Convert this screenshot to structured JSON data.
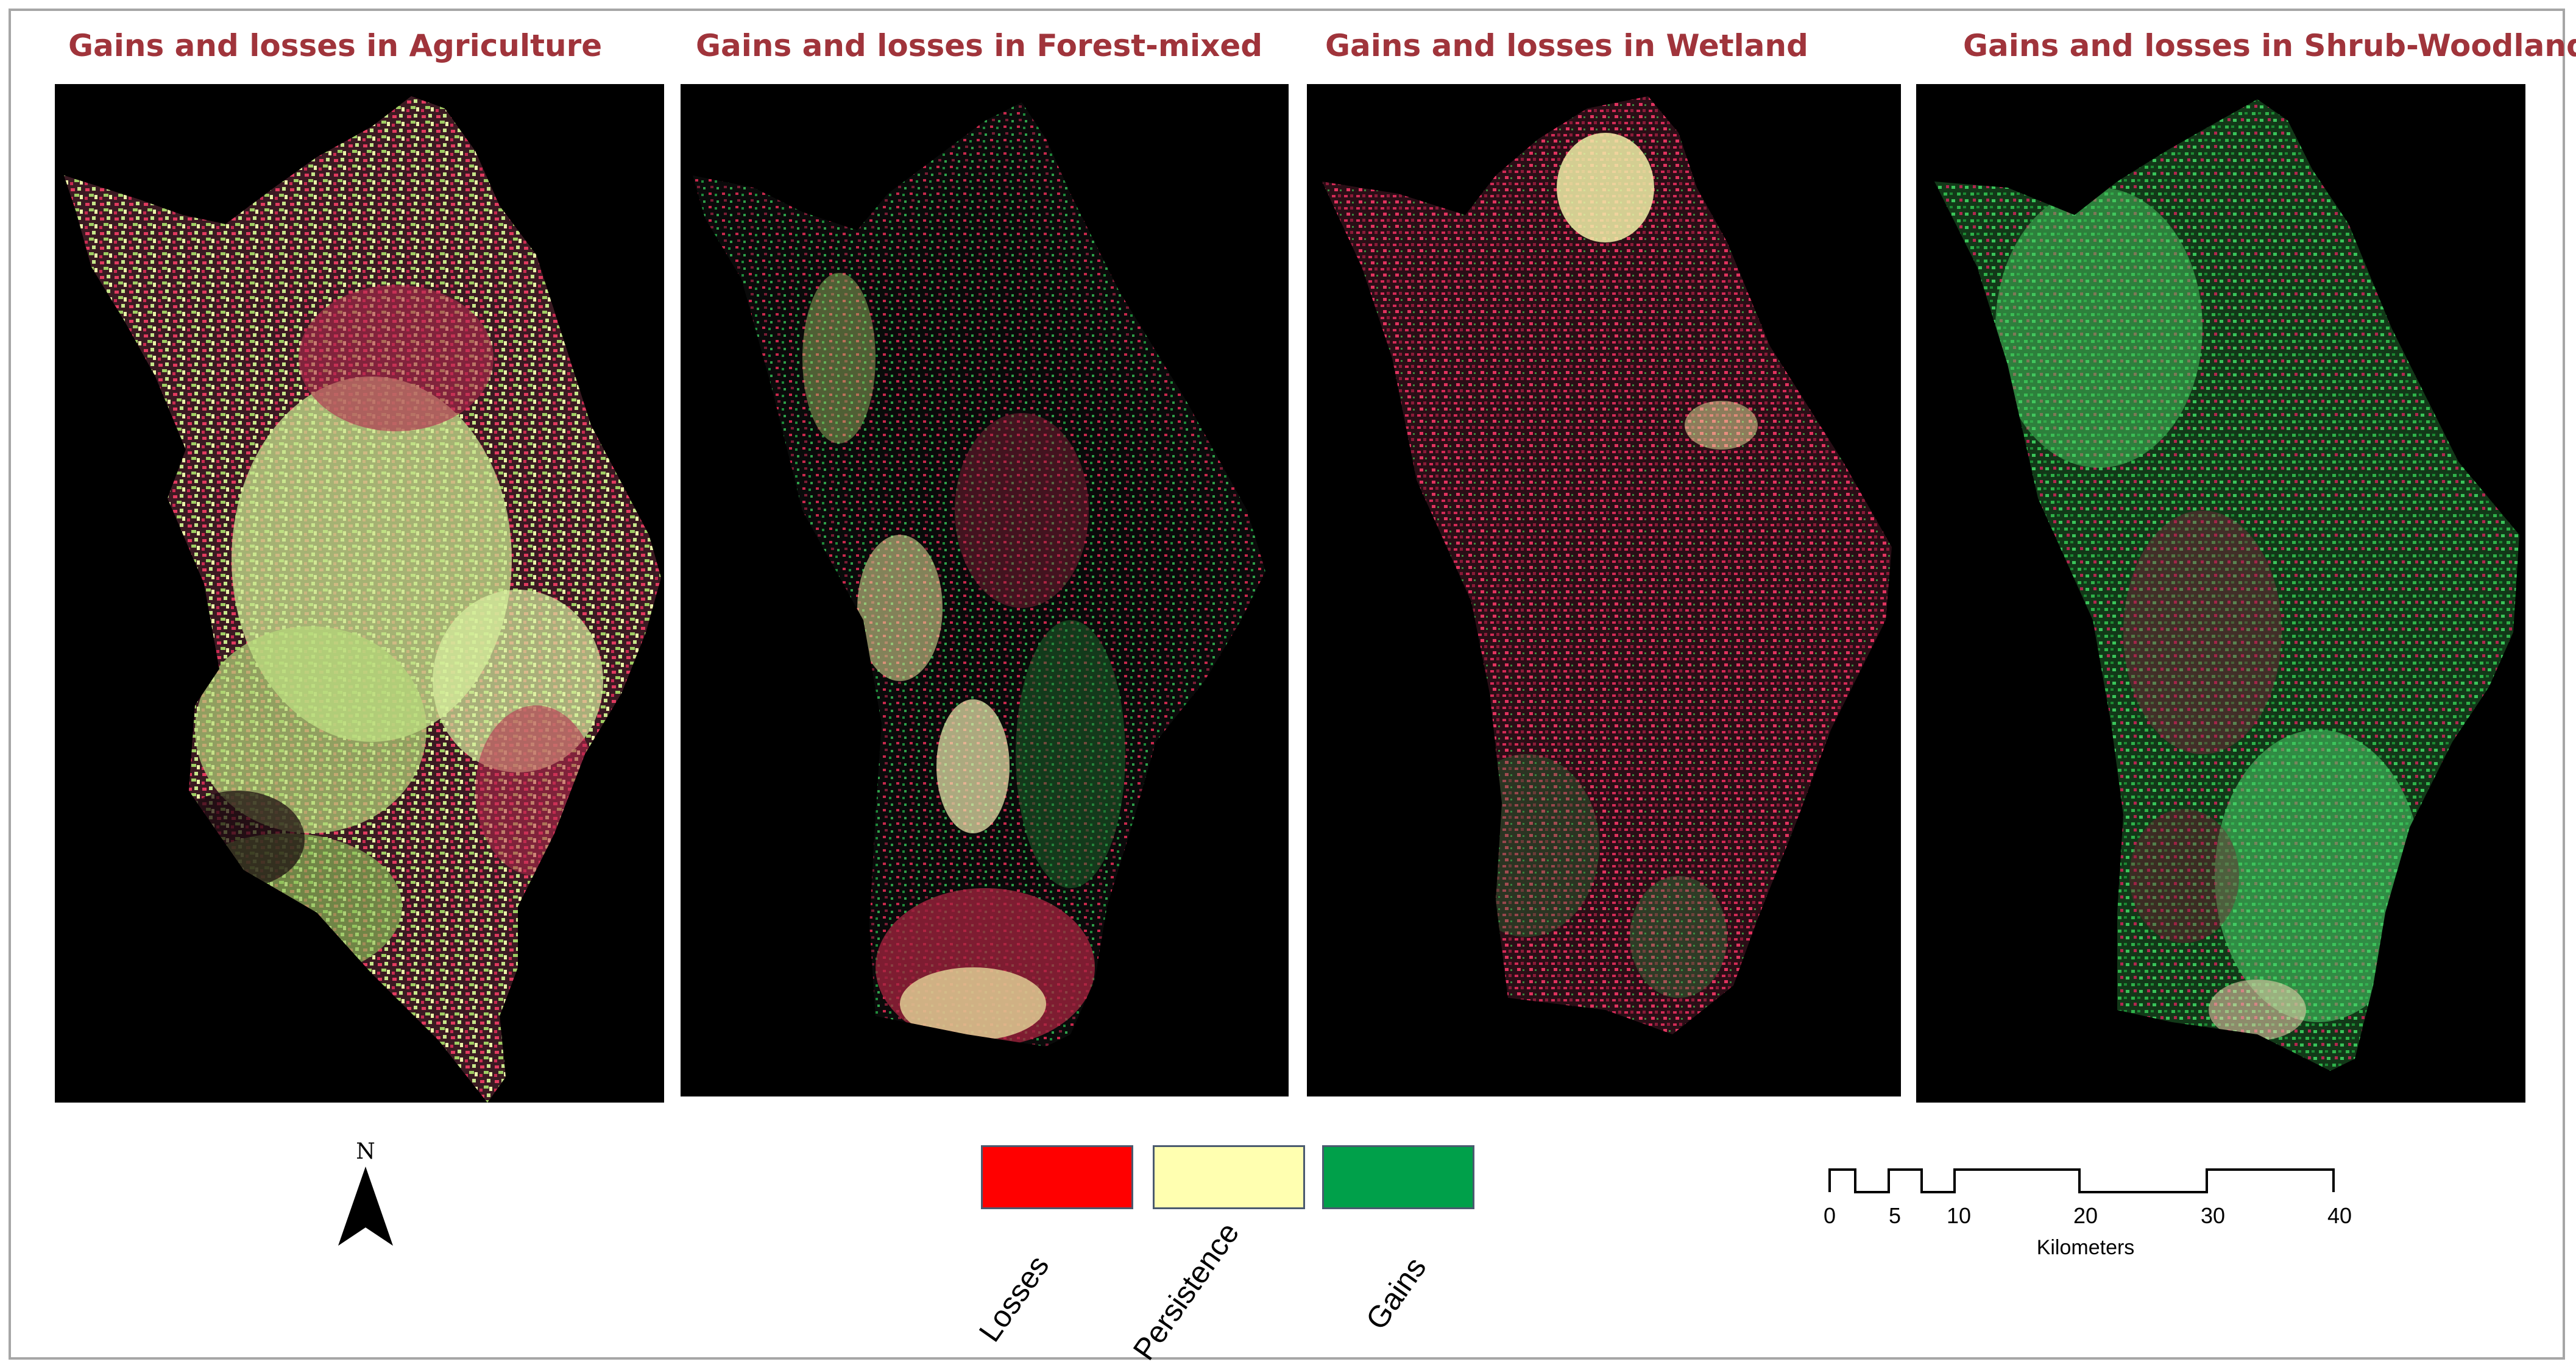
{
  "panels": [
    {
      "title": "Gains and losses in Agriculture"
    },
    {
      "title": "Gains and losses in Forest-mixed"
    },
    {
      "title": "Gains and losses in Wetland"
    },
    {
      "title": "Gains and losses in Shrub-Woodland"
    }
  ],
  "north_arrow": {
    "label": "N",
    "icon": "north-arrow-icon"
  },
  "legend": {
    "items": [
      {
        "label": "Losses",
        "color": "#ff0000"
      },
      {
        "label": "Persistence",
        "color": "#ffffb0"
      },
      {
        "label": "Gains",
        "color": "#00a04a"
      }
    ]
  },
  "scale_bar": {
    "unit": "Kilometers",
    "ticks": [
      0,
      5,
      10,
      20,
      30,
      40
    ]
  },
  "colors": {
    "title": "#a0343b",
    "background": "#000000",
    "losses": "#ff0000",
    "persistence": "#ffffb0",
    "gains": "#00a04a"
  }
}
